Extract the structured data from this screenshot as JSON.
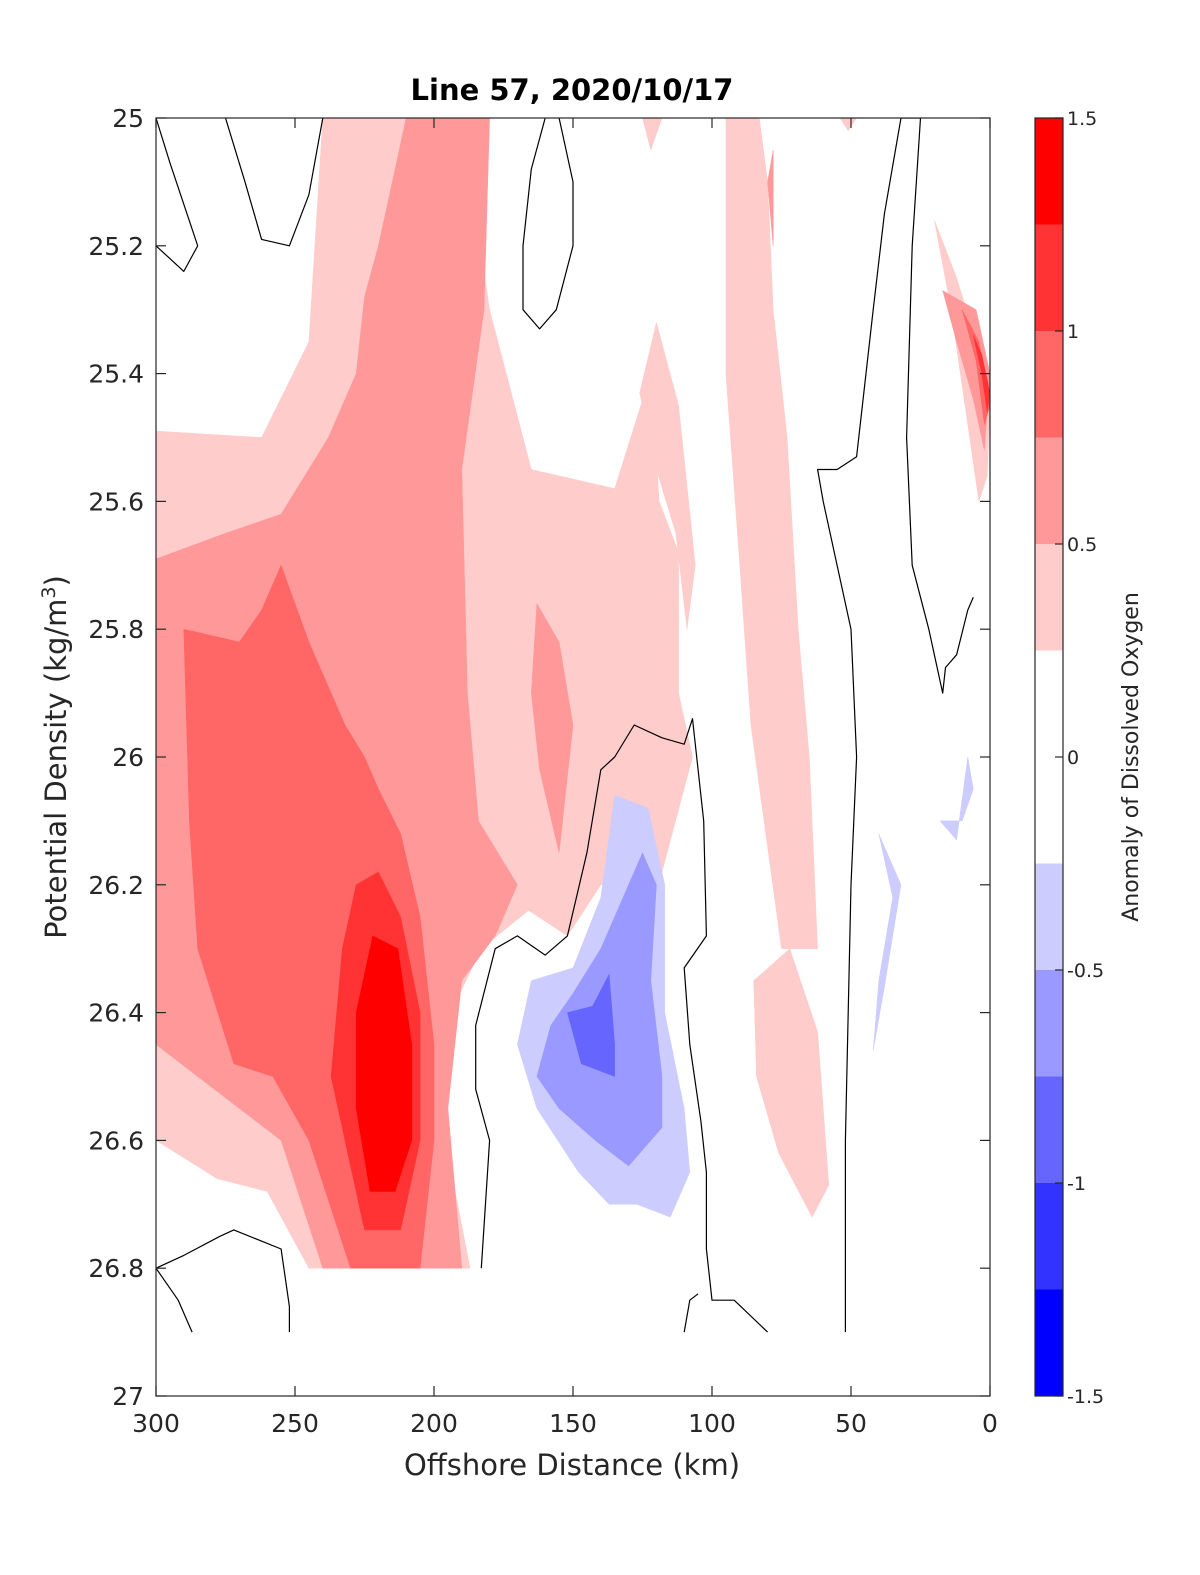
{
  "chart_data": {
    "type": "heatmap",
    "subtype": "filled-contour",
    "title": "Line 57, 2020/10/17",
    "xlabel": "Offshore Distance (km)",
    "ylabel_main": "Potential Density (kg/m",
    "ylabel_sup": "3",
    "ylabel_close": ")",
    "colorbar_label": "Anomaly of Dissolved Oxygen",
    "xlim": [
      300,
      0
    ],
    "x_reversed": true,
    "ylim": [
      27,
      25
    ],
    "y_reversed": true,
    "x_ticks": [
      "300",
      "250",
      "200",
      "150",
      "100",
      "50",
      "0"
    ],
    "y_ticks": [
      "25",
      "25.2",
      "25.4",
      "25.6",
      "25.8",
      "26",
      "26.2",
      "26.4",
      "26.6",
      "26.8",
      "27"
    ],
    "colorbar": {
      "range": [
        -1.5,
        1.5
      ],
      "ticks": [
        "1.5",
        "1",
        "0.5",
        "0",
        "-0.5",
        "-1",
        "-1.5"
      ],
      "levels": [
        {
          "from": 1.25,
          "to": 1.5,
          "color": "#ff0000"
        },
        {
          "from": 1.0,
          "to": 1.25,
          "color": "#ff3333"
        },
        {
          "from": 0.75,
          "to": 1.0,
          "color": "#ff6666"
        },
        {
          "from": 0.5,
          "to": 0.75,
          "color": "#ff9999"
        },
        {
          "from": 0.25,
          "to": 0.5,
          "color": "#ffcccc"
        },
        {
          "from": -0.25,
          "to": 0.25,
          "color": "#ffffff"
        },
        {
          "from": -0.5,
          "to": -0.25,
          "color": "#ccccff"
        },
        {
          "from": -0.75,
          "to": -0.5,
          "color": "#9999ff"
        },
        {
          "from": -1.0,
          "to": -0.75,
          "color": "#6666ff"
        },
        {
          "from": -1.25,
          "to": -1.0,
          "color": "#3333ff"
        },
        {
          "from": -1.5,
          "to": -1.25,
          "color": "#0000ff"
        }
      ]
    },
    "regions": [
      {
        "level": 0.25,
        "color": "#ffcccc",
        "points": [
          [
            300,
            25.49
          ],
          [
            262,
            25.5
          ],
          [
            245,
            25.35
          ],
          [
            240,
            25.0
          ],
          [
            190,
            25.0
          ],
          [
            180,
            25.3
          ],
          [
            165,
            25.55
          ],
          [
            135,
            25.58
          ],
          [
            122,
            25.4
          ],
          [
            119,
            25.6
          ],
          [
            112,
            25.68
          ],
          [
            112,
            25.9
          ],
          [
            107,
            26.0
          ],
          [
            118,
            26.18
          ],
          [
            140,
            26.2
          ],
          [
            152,
            26.28
          ],
          [
            166,
            26.24
          ],
          [
            183,
            26.3
          ],
          [
            194,
            26.4
          ],
          [
            196,
            26.6
          ],
          [
            187,
            26.8
          ],
          [
            245,
            26.8
          ],
          [
            260,
            26.68
          ],
          [
            278,
            26.66
          ],
          [
            300,
            26.6
          ]
        ]
      },
      {
        "level": 0.25,
        "color": "#ffcccc",
        "points": [
          [
            95,
            25.0
          ],
          [
            83,
            25.0
          ],
          [
            80,
            25.1
          ],
          [
            78,
            25.3
          ],
          [
            73,
            25.5
          ],
          [
            69,
            25.8
          ],
          [
            65,
            26.0
          ],
          [
            62,
            26.3
          ],
          [
            75,
            26.3
          ],
          [
            86,
            25.95
          ],
          [
            90,
            25.7
          ],
          [
            95,
            25.4
          ]
        ]
      },
      {
        "level": 0.25,
        "color": "#ffcccc",
        "points": [
          [
            85,
            26.35
          ],
          [
            72,
            26.3
          ],
          [
            62,
            26.43
          ],
          [
            58,
            26.67
          ],
          [
            64,
            26.72
          ],
          [
            76,
            26.62
          ],
          [
            84,
            26.5
          ]
        ]
      },
      {
        "level": 0.25,
        "color": "#ffcccc",
        "points": [
          [
            126,
            25.43
          ],
          [
            120,
            25.55
          ],
          [
            113,
            25.65
          ],
          [
            109,
            25.8
          ],
          [
            106,
            25.7
          ],
          [
            112,
            25.45
          ],
          [
            120,
            25.32
          ]
        ]
      },
      {
        "level": 0.25,
        "color": "#ffcccc",
        "points": [
          [
            20,
            25.16
          ],
          [
            14,
            25.3
          ],
          [
            8,
            25.48
          ],
          [
            4,
            25.6
          ],
          [
            1,
            25.56
          ],
          [
            0,
            25.45
          ],
          [
            5,
            25.35
          ],
          [
            12,
            25.25
          ]
        ]
      },
      {
        "level": 0.25,
        "color": "#ffcccc",
        "points": [
          [
            125,
            25.0
          ],
          [
            118,
            25.0
          ],
          [
            122,
            25.05
          ]
        ]
      },
      {
        "level": 0.25,
        "color": "#ffcccc",
        "points": [
          [
            54,
            25.0
          ],
          [
            48,
            25.0
          ],
          [
            51,
            25.02
          ]
        ]
      },
      {
        "level": 0.5,
        "color": "#ff9999",
        "points": [
          [
            300,
            25.69
          ],
          [
            275,
            25.65
          ],
          [
            255,
            25.62
          ],
          [
            238,
            25.5
          ],
          [
            228,
            25.4
          ],
          [
            225,
            25.28
          ],
          [
            220,
            25.2
          ],
          [
            210,
            25.0
          ],
          [
            180,
            25.0
          ],
          [
            182,
            25.3
          ],
          [
            190,
            25.55
          ],
          [
            188,
            25.9
          ],
          [
            184,
            26.1
          ],
          [
            170,
            26.2
          ],
          [
            178,
            26.28
          ],
          [
            190,
            26.35
          ],
          [
            195,
            26.55
          ],
          [
            190,
            26.8
          ],
          [
            240,
            26.8
          ],
          [
            255,
            26.6
          ],
          [
            270,
            26.55
          ],
          [
            300,
            26.45
          ]
        ]
      },
      {
        "level": 0.5,
        "color": "#ff9999",
        "points": [
          [
            163,
            25.76
          ],
          [
            155,
            25.82
          ],
          [
            150,
            25.95
          ],
          [
            155,
            26.15
          ],
          [
            162,
            26.02
          ],
          [
            165,
            25.9
          ]
        ]
      },
      {
        "level": 0.5,
        "color": "#ff9999",
        "points": [
          [
            78,
            25.05
          ],
          [
            80,
            25.1
          ],
          [
            78,
            25.2
          ]
        ]
      },
      {
        "level": 0.5,
        "color": "#ff9999",
        "points": [
          [
            17,
            25.27
          ],
          [
            12,
            25.35
          ],
          [
            6,
            25.44
          ],
          [
            2,
            25.52
          ],
          [
            0,
            25.4
          ],
          [
            5,
            25.3
          ]
        ]
      },
      {
        "level": 0.75,
        "color": "#ff6666",
        "points": [
          [
            290,
            25.8
          ],
          [
            270,
            25.82
          ],
          [
            262,
            25.77
          ],
          [
            255,
            25.7
          ],
          [
            245,
            25.82
          ],
          [
            232,
            25.95
          ],
          [
            225,
            26.0
          ],
          [
            220,
            26.05
          ],
          [
            212,
            26.12
          ],
          [
            205,
            26.25
          ],
          [
            200,
            26.45
          ],
          [
            200,
            26.6
          ],
          [
            205,
            26.8
          ],
          [
            230,
            26.8
          ],
          [
            245,
            26.6
          ],
          [
            258,
            26.5
          ],
          [
            272,
            26.48
          ],
          [
            285,
            26.3
          ],
          [
            288,
            26.1
          ]
        ]
      },
      {
        "level": 0.75,
        "color": "#ff6666",
        "points": [
          [
            10,
            25.3
          ],
          [
            5,
            25.38
          ],
          [
            2,
            25.48
          ],
          [
            0,
            25.45
          ],
          [
            4,
            25.35
          ]
        ]
      },
      {
        "level": 1.0,
        "color": "#ff3333",
        "points": [
          [
            228,
            26.2
          ],
          [
            220,
            26.18
          ],
          [
            212,
            26.25
          ],
          [
            205,
            26.4
          ],
          [
            205,
            26.6
          ],
          [
            212,
            26.74
          ],
          [
            225,
            26.74
          ],
          [
            232,
            26.6
          ],
          [
            237,
            26.5
          ],
          [
            233,
            26.3
          ]
        ]
      },
      {
        "level": 1.0,
        "color": "#ff3333",
        "points": [
          [
            6,
            25.34
          ],
          [
            3,
            25.4
          ],
          [
            1,
            25.46
          ],
          [
            0,
            25.43
          ],
          [
            3,
            25.37
          ]
        ]
      },
      {
        "level": 1.25,
        "color": "#ff0000",
        "points": [
          [
            222,
            26.28
          ],
          [
            213,
            26.3
          ],
          [
            208,
            26.45
          ],
          [
            208,
            26.6
          ],
          [
            214,
            26.68
          ],
          [
            223,
            26.68
          ],
          [
            228,
            26.55
          ],
          [
            228,
            26.4
          ]
        ]
      },
      {
        "level": -0.25,
        "color": "#ccccff",
        "points": [
          [
            135,
            26.06
          ],
          [
            123,
            26.08
          ],
          [
            117,
            26.2
          ],
          [
            117,
            26.4
          ],
          [
            110,
            26.55
          ],
          [
            108,
            26.65
          ],
          [
            115,
            26.72
          ],
          [
            127,
            26.7
          ],
          [
            137,
            26.7
          ],
          [
            148,
            26.65
          ],
          [
            163,
            26.55
          ],
          [
            170,
            26.45
          ],
          [
            165,
            26.35
          ],
          [
            150,
            26.33
          ],
          [
            140,
            26.22
          ]
        ]
      },
      {
        "level": -0.25,
        "color": "#ccccff",
        "points": [
          [
            40,
            26.12
          ],
          [
            32,
            26.2
          ],
          [
            38,
            26.36
          ],
          [
            42,
            26.46
          ],
          [
            40,
            26.35
          ],
          [
            35,
            26.22
          ]
        ]
      },
      {
        "level": -0.25,
        "color": "#ccccff",
        "points": [
          [
            18,
            26.1
          ],
          [
            12,
            26.13
          ],
          [
            8,
            26.0
          ],
          [
            6,
            26.05
          ],
          [
            10,
            26.1
          ]
        ]
      },
      {
        "level": -0.5,
        "color": "#9999ff",
        "points": [
          [
            125,
            26.15
          ],
          [
            120,
            26.2
          ],
          [
            122,
            26.35
          ],
          [
            118,
            26.5
          ],
          [
            118,
            26.58
          ],
          [
            130,
            26.64
          ],
          [
            142,
            26.6
          ],
          [
            155,
            26.55
          ],
          [
            163,
            26.5
          ],
          [
            158,
            26.42
          ],
          [
            150,
            26.37
          ],
          [
            140,
            26.3
          ]
        ]
      },
      {
        "level": -0.75,
        "color": "#6666ff",
        "points": [
          [
            137,
            26.34
          ],
          [
            143,
            26.39
          ],
          [
            152,
            26.4
          ],
          [
            147,
            26.48
          ],
          [
            135,
            26.5
          ],
          [
            135,
            26.45
          ]
        ]
      }
    ],
    "zero_contours": [
      [
        [
          300,
          25.0
        ],
        [
          295,
          25.07
        ],
        [
          285,
          25.2
        ],
        [
          290,
          25.24
        ],
        [
          295,
          25.22
        ],
        [
          300,
          25.2
        ]
      ],
      [
        [
          240,
          25.0
        ],
        [
          245,
          25.12
        ],
        [
          252,
          25.2
        ],
        [
          262,
          25.19
        ],
        [
          268,
          25.1
        ],
        [
          275,
          25.0
        ]
      ],
      [
        [
          160,
          25.0
        ],
        [
          165,
          25.08
        ],
        [
          168,
          25.2
        ],
        [
          168,
          25.3
        ],
        [
          162,
          25.33
        ],
        [
          156,
          25.3
        ],
        [
          150,
          25.2
        ],
        [
          150,
          25.1
        ],
        [
          155,
          25.0
        ]
      ],
      [
        [
          52,
          26.9
        ],
        [
          52,
          26.6
        ],
        [
          50,
          26.2
        ],
        [
          48,
          26.0
        ],
        [
          50,
          25.8
        ],
        [
          60,
          25.6
        ],
        [
          62,
          25.55
        ],
        [
          55,
          25.55
        ],
        [
          48,
          25.53
        ],
        [
          42,
          25.3
        ],
        [
          38,
          25.15
        ],
        [
          32,
          25.0
        ],
        [
          25,
          25.0
        ],
        [
          28,
          25.2
        ],
        [
          30,
          25.5
        ],
        [
          28,
          25.7
        ],
        [
          22,
          25.8
        ],
        [
          17,
          25.9
        ],
        [
          16,
          25.86
        ],
        [
          12,
          25.84
        ],
        [
          8,
          25.77
        ],
        [
          6,
          25.75
        ]
      ],
      [
        [
          183,
          26.8
        ],
        [
          180,
          26.6
        ],
        [
          185,
          26.52
        ],
        [
          185,
          26.42
        ],
        [
          178,
          26.3
        ],
        [
          170,
          26.28
        ],
        [
          160,
          26.31
        ],
        [
          152,
          26.28
        ],
        [
          145,
          26.15
        ],
        [
          140,
          26.02
        ],
        [
          135,
          26.0
        ],
        [
          128,
          25.95
        ],
        [
          118,
          25.97
        ],
        [
          110,
          25.98
        ],
        [
          107,
          25.94
        ],
        [
          103,
          26.1
        ],
        [
          102,
          26.28
        ],
        [
          110,
          26.33
        ],
        [
          108,
          26.45
        ],
        [
          104,
          26.57
        ],
        [
          102,
          26.65
        ],
        [
          102,
          26.77
        ],
        [
          100,
          26.85
        ],
        [
          92,
          26.85
        ],
        [
          80,
          26.9
        ]
      ],
      [
        [
          300,
          26.8
        ],
        [
          290,
          26.78
        ],
        [
          277,
          26.75
        ],
        [
          272,
          26.74
        ],
        [
          255,
          26.77
        ],
        [
          252,
          26.86
        ],
        [
          252,
          26.9
        ]
      ],
      [
        [
          300,
          26.8
        ],
        [
          292,
          26.85
        ],
        [
          287,
          26.9
        ]
      ],
      [
        [
          110,
          26.9
        ],
        [
          108,
          26.85
        ],
        [
          105,
          26.84
        ]
      ]
    ]
  }
}
